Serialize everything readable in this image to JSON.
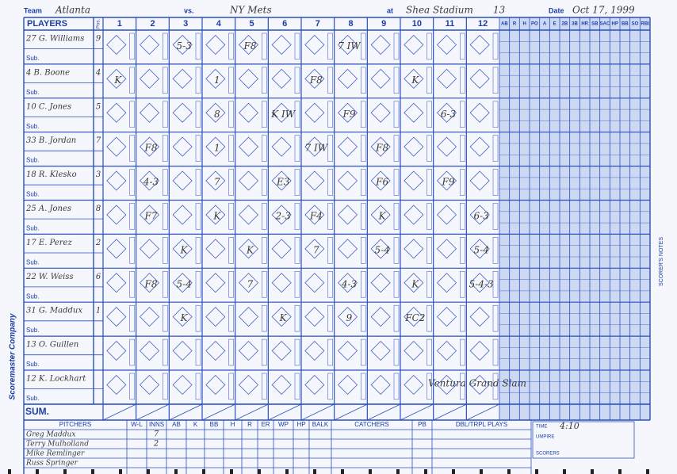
{
  "header": {
    "team_label": "Team",
    "team": "Atlanta",
    "vs_label": "vs.",
    "opponent": "NY Mets",
    "at_label": "at",
    "venue": "Shea Stadium",
    "game": "13",
    "date_label": "Date",
    "date": "Oct 17, 1999"
  },
  "grid": {
    "players_label": "PLAYERS",
    "pos_label": "Pos.",
    "innings": [
      "1",
      "2",
      "3",
      "4",
      "5",
      "6",
      "7",
      "8",
      "9",
      "10",
      "11",
      "12"
    ],
    "stats": [
      "AB",
      "R",
      "H",
      "PO",
      "A",
      "E",
      "2B",
      "3B",
      "HR",
      "SB",
      "SAC",
      "HP",
      "BB",
      "SO",
      "RBI"
    ],
    "sub_label": "Sub.",
    "sum_label": "SUM.",
    "notes_label": "SCORER'S NOTES"
  },
  "players": [
    {
      "name": "27 G. Williams",
      "pos": "9",
      "plays": [
        null,
        null,
        "5-3",
        null,
        "F8",
        null,
        null,
        "7 IW",
        null,
        null,
        null,
        null
      ]
    },
    {
      "name": "4 B. Boone",
      "pos": "4",
      "plays": [
        "K",
        null,
        null,
        "1",
        null,
        null,
        "F8",
        null,
        null,
        "K",
        null,
        null
      ]
    },
    {
      "name": "10 C. Jones",
      "pos": "5",
      "plays": [
        null,
        null,
        null,
        "8",
        null,
        "K IW",
        null,
        "F9",
        null,
        null,
        "6-3",
        null
      ]
    },
    {
      "name": "33 B. Jordan",
      "pos": "7",
      "plays": [
        null,
        "F8",
        null,
        "1",
        null,
        null,
        "7 IW",
        null,
        "F8",
        null,
        null,
        null
      ]
    },
    {
      "name": "18 R. Klesko",
      "pos": "3",
      "plays": [
        null,
        "4-3",
        null,
        "7",
        null,
        "E3",
        null,
        null,
        "F6",
        null,
        "F9",
        null
      ]
    },
    {
      "name": "25 A. Jones",
      "pos": "8",
      "plays": [
        null,
        "F7",
        null,
        "K",
        null,
        "2-3",
        "F4",
        null,
        "K",
        null,
        null,
        "6-3"
      ]
    },
    {
      "name": "17 E. Perez",
      "pos": "2",
      "plays": [
        null,
        null,
        "K",
        null,
        "K",
        null,
        "7",
        null,
        "5-4",
        null,
        null,
        "5-4"
      ]
    },
    {
      "name": "22 W. Weiss",
      "pos": "6",
      "plays": [
        null,
        "F8",
        "5-4",
        null,
        "7",
        null,
        null,
        "4-3",
        null,
        "K",
        null,
        "5-4-3"
      ]
    },
    {
      "name": "31 G. Maddux",
      "pos": "1",
      "plays": [
        null,
        null,
        "K",
        null,
        null,
        "K",
        null,
        "9",
        null,
        "FC2",
        null,
        null
      ]
    },
    {
      "name": "13 O. Guillen"
    },
    {
      "name": "12 K. Lockhart"
    }
  ],
  "pitching": {
    "headers": [
      "PITCHERS",
      "W-L",
      "INNS",
      "AB",
      "K",
      "BB",
      "H",
      "R",
      "ER",
      "WP",
      "HP",
      "BALK"
    ],
    "catchers_label": "CATCHERS",
    "pb_label": "PB",
    "dp_label": "DBL/TRPL PLAYS",
    "pitchers": [
      {
        "name": "Greg Maddux",
        "inns": "7"
      },
      {
        "name": "Terry Mulholland",
        "inns": "2"
      },
      {
        "name": "Mike Remlinger"
      },
      {
        "name": "Russ Springer"
      }
    ]
  },
  "game_info": {
    "time_label": "TIME",
    "time": "4:10",
    "umpire_label": "UMPIRE",
    "scorers_label": "SCORERS"
  },
  "notes": [
    "Ventura Grand Slam"
  ],
  "imprint": "Scoremaster Company"
}
